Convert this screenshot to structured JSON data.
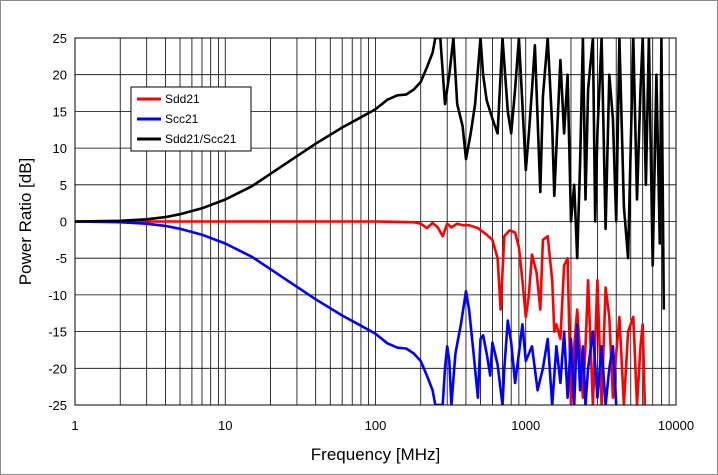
{
  "chart_data": {
    "type": "line",
    "title": "",
    "xlabel": "Frequency [MHz]",
    "ylabel": "Power Ratio [dB]",
    "xscale": "log",
    "xlim": [
      1,
      10000
    ],
    "ylim": [
      -25,
      25
    ],
    "x_ticks": [
      1,
      10,
      100,
      1000,
      10000
    ],
    "x_tick_labels": [
      "1",
      "10",
      "100",
      "1000",
      "10000"
    ],
    "y_ticks": [
      25,
      20,
      15,
      10,
      5,
      0,
      -5,
      -10,
      -15,
      -20,
      -25
    ],
    "y_tick_labels": [
      "25",
      "20",
      "15",
      "10",
      "5",
      "0",
      "-5",
      "-10",
      "-15",
      "-20",
      "-25"
    ],
    "grid": true,
    "legend_position": "top-left",
    "series": [
      {
        "name": "Sdd21",
        "color": "#ff0000",
        "points": [
          [
            1,
            0
          ],
          [
            10,
            0
          ],
          [
            100,
            0
          ],
          [
            180,
            -0.1
          ],
          [
            200,
            -0.3
          ],
          [
            220,
            -0.9
          ],
          [
            240,
            -0.2
          ],
          [
            260,
            -0.8
          ],
          [
            280,
            -2.0
          ],
          [
            300,
            -0.3
          ],
          [
            320,
            -0.8
          ],
          [
            350,
            -0.3
          ],
          [
            380,
            -0.5
          ],
          [
            420,
            -0.5
          ],
          [
            480,
            -0.9
          ],
          [
            550,
            -1.8
          ],
          [
            600,
            -2.5
          ],
          [
            650,
            -5.0
          ],
          [
            680,
            -12.0
          ],
          [
            720,
            -2.0
          ],
          [
            780,
            -1.2
          ],
          [
            850,
            -1.5
          ],
          [
            900,
            -3.5
          ],
          [
            950,
            -8.0
          ],
          [
            1000,
            -13.0
          ],
          [
            1050,
            -10.0
          ],
          [
            1100,
            -4.5
          ],
          [
            1180,
            -7.0
          ],
          [
            1250,
            -12.0
          ],
          [
            1300,
            -2.5
          ],
          [
            1400,
            -2.0
          ],
          [
            1500,
            -8.0
          ],
          [
            1550,
            -15.0
          ],
          [
            1600,
            -14.0
          ],
          [
            1700,
            -16.0
          ],
          [
            1800,
            -6.0
          ],
          [
            1900,
            -5.0
          ],
          [
            2000,
            -25.0
          ],
          [
            2100,
            -17.0
          ],
          [
            2200,
            -12.0
          ],
          [
            2400,
            -24.0
          ],
          [
            2500,
            -17.0
          ],
          [
            2600,
            -8.0
          ],
          [
            2800,
            -25.0
          ],
          [
            3000,
            -8.0
          ],
          [
            3200,
            -25.0
          ],
          [
            3400,
            -9.0
          ],
          [
            3600,
            -13.0
          ],
          [
            3800,
            -24.0
          ],
          [
            4000,
            -18.0
          ],
          [
            4200,
            -13.0
          ],
          [
            4500,
            -25.0
          ],
          [
            4800,
            -15.0
          ],
          [
            5200,
            -13.0
          ],
          [
            5500,
            -25.0
          ],
          [
            5800,
            -17.0
          ],
          [
            6000,
            -14.0
          ],
          [
            6200,
            -25.0
          ]
        ]
      },
      {
        "name": "Scc21",
        "color": "#0000ff",
        "points": [
          [
            1,
            0
          ],
          [
            2,
            -0.1
          ],
          [
            3,
            -0.3
          ],
          [
            4,
            -0.6
          ],
          [
            5,
            -1.0
          ],
          [
            7,
            -1.8
          ],
          [
            10,
            -3.0
          ],
          [
            15,
            -4.8
          ],
          [
            20,
            -6.5
          ],
          [
            30,
            -8.9
          ],
          [
            40,
            -10.6
          ],
          [
            60,
            -12.8
          ],
          [
            80,
            -14.2
          ],
          [
            100,
            -15.3
          ],
          [
            120,
            -16.6
          ],
          [
            140,
            -17.2
          ],
          [
            160,
            -17.3
          ],
          [
            180,
            -18.0
          ],
          [
            200,
            -19.0
          ],
          [
            220,
            -21.0
          ],
          [
            240,
            -23.0
          ],
          [
            250,
            -25.0
          ],
          [
            280,
            -25.0
          ],
          [
            290,
            -20.0
          ],
          [
            300,
            -17.0
          ],
          [
            310,
            -19.0
          ],
          [
            320,
            -25.0
          ],
          [
            340,
            -18.0
          ],
          [
            370,
            -14.0
          ],
          [
            400,
            -9.5
          ],
          [
            420,
            -12.0
          ],
          [
            450,
            -18.0
          ],
          [
            480,
            -24.0
          ],
          [
            500,
            -16.0
          ],
          [
            520,
            -15.5
          ],
          [
            550,
            -18.0
          ],
          [
            580,
            -21.0
          ],
          [
            600,
            -16.5
          ],
          [
            650,
            -19.5
          ],
          [
            700,
            -25.0
          ],
          [
            720,
            -20.0
          ],
          [
            760,
            -13.5
          ],
          [
            800,
            -16.5
          ],
          [
            850,
            -22.0
          ],
          [
            900,
            -18.0
          ],
          [
            950,
            -14.0
          ],
          [
            1000,
            -19.0
          ],
          [
            1100,
            -17.0
          ],
          [
            1200,
            -23.0
          ],
          [
            1300,
            -20.0
          ],
          [
            1400,
            -16.0
          ],
          [
            1500,
            -25.0
          ],
          [
            1600,
            -17.0
          ],
          [
            1700,
            -22.0
          ],
          [
            1800,
            -15.0
          ],
          [
            1900,
            -24.0
          ],
          [
            2000,
            -16.0
          ],
          [
            2100,
            -25.0
          ],
          [
            2200,
            -14.0
          ],
          [
            2300,
            -23.0
          ],
          [
            2400,
            -17.0
          ],
          [
            2500,
            -25.0
          ],
          [
            2600,
            -20.0
          ],
          [
            2800,
            -15.0
          ],
          [
            3000,
            -24.0
          ],
          [
            3200,
            -17.0
          ],
          [
            3400,
            -25.0
          ],
          [
            3600,
            -20.0
          ],
          [
            3800,
            -17.0
          ],
          [
            4000,
            -25.0
          ]
        ]
      },
      {
        "name": "Sdd21/Scc21",
        "color": "#000000",
        "points": [
          [
            1,
            0
          ],
          [
            2,
            0.1
          ],
          [
            3,
            0.3
          ],
          [
            4,
            0.6
          ],
          [
            5,
            1.0
          ],
          [
            7,
            1.8
          ],
          [
            10,
            3.0
          ],
          [
            15,
            4.8
          ],
          [
            20,
            6.5
          ],
          [
            30,
            8.9
          ],
          [
            40,
            10.6
          ],
          [
            60,
            12.8
          ],
          [
            80,
            14.2
          ],
          [
            100,
            15.3
          ],
          [
            120,
            16.6
          ],
          [
            140,
            17.2
          ],
          [
            160,
            17.3
          ],
          [
            180,
            18.0
          ],
          [
            200,
            19.0
          ],
          [
            220,
            21.0
          ],
          [
            240,
            23.0
          ],
          [
            250,
            25.0
          ],
          [
            270,
            25.0
          ],
          [
            290,
            16.0
          ],
          [
            310,
            20.0
          ],
          [
            330,
            25.0
          ],
          [
            350,
            16.0
          ],
          [
            380,
            13.0
          ],
          [
            400,
            8.5
          ],
          [
            430,
            12.0
          ],
          [
            460,
            16.0
          ],
          [
            500,
            25.0
          ],
          [
            520,
            20.0
          ],
          [
            550,
            16.5
          ],
          [
            600,
            14.0
          ],
          [
            650,
            12.0
          ],
          [
            700,
            25.0
          ],
          [
            760,
            15.0
          ],
          [
            800,
            12.0
          ],
          [
            850,
            18.0
          ],
          [
            900,
            25.0
          ],
          [
            950,
            16.0
          ],
          [
            1000,
            7.0
          ],
          [
            1050,
            12.0
          ],
          [
            1100,
            18.0
          ],
          [
            1150,
            24.0
          ],
          [
            1200,
            14.0
          ],
          [
            1250,
            4.0
          ],
          [
            1300,
            17.0
          ],
          [
            1400,
            25.0
          ],
          [
            1500,
            13.0
          ],
          [
            1550,
            3.5
          ],
          [
            1600,
            10.0
          ],
          [
            1700,
            22.0
          ],
          [
            1800,
            12.0
          ],
          [
            1900,
            20.0
          ],
          [
            2000,
            0.0
          ],
          [
            2100,
            5.0
          ],
          [
            2200,
            -5.0
          ],
          [
            2300,
            8.0
          ],
          [
            2400,
            25.0
          ],
          [
            2500,
            3.0
          ],
          [
            2600,
            18.0
          ],
          [
            2800,
            25.0
          ],
          [
            2900,
            0.0
          ],
          [
            3000,
            12.0
          ],
          [
            3200,
            25.0
          ],
          [
            3400,
            -1.0
          ],
          [
            3600,
            20.0
          ],
          [
            3800,
            14.0
          ],
          [
            4000,
            0.0
          ],
          [
            4200,
            25.0
          ],
          [
            4500,
            2.0
          ],
          [
            4800,
            -5.0
          ],
          [
            5200,
            25.0
          ],
          [
            5500,
            3.0
          ],
          [
            5800,
            18.0
          ],
          [
            6000,
            25.0
          ],
          [
            6300,
            5.0
          ],
          [
            6600,
            25.0
          ],
          [
            7000,
            -6.0
          ],
          [
            7400,
            20.0
          ],
          [
            7800,
            -3.0
          ],
          [
            8000,
            25.0
          ],
          [
            8300,
            -12.0
          ]
        ]
      }
    ]
  }
}
